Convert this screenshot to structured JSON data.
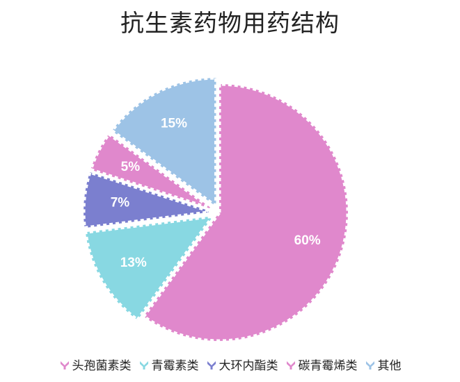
{
  "chart_data": {
    "type": "pie",
    "title": "抗生素药物用药结构",
    "categories": [
      "头孢菌素类",
      "青霉素类",
      "大环内酯类",
      "碳青霉烯类",
      "其他"
    ],
    "values": [
      60,
      13,
      7,
      5,
      15
    ],
    "labels": [
      "60%",
      "13%",
      "7%",
      "5%",
      "15%"
    ],
    "colors": [
      "#E088CC",
      "#88D8E2",
      "#7B7FCF",
      "#E088CC",
      "#9DC3E6"
    ],
    "exploded": [
      false,
      true,
      true,
      true,
      true
    ],
    "legend_position": "bottom",
    "start_angle_deg": 0,
    "direction": "clockwise"
  }
}
